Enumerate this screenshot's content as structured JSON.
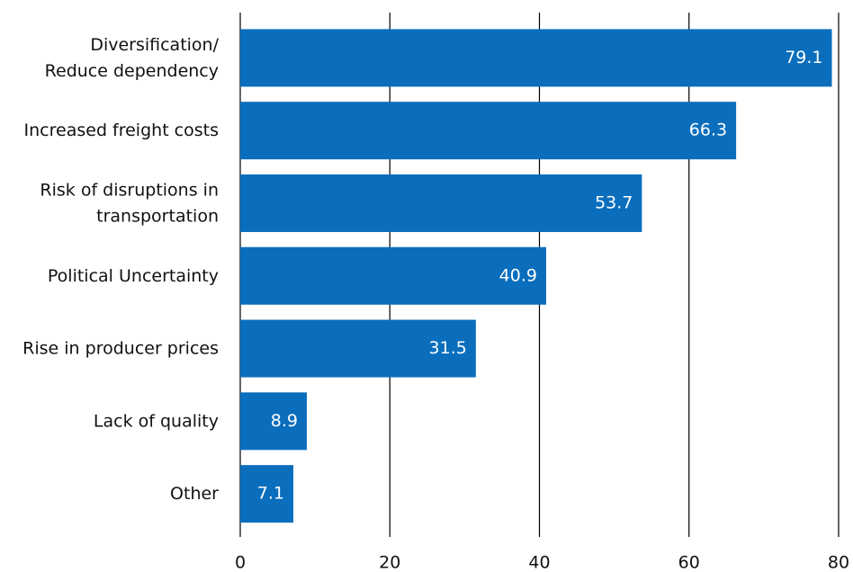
{
  "chart_data": {
    "type": "bar",
    "orientation": "horizontal",
    "categories": [
      [
        "Diversification/",
        "Reduce  dependency"
      ],
      [
        "Increased freight costs"
      ],
      [
        "Risk of disruptions in",
        "transportation"
      ],
      [
        "Political Uncertainty"
      ],
      [
        "Rise in producer prices"
      ],
      [
        "Lack of quality"
      ],
      [
        "Other"
      ]
    ],
    "values": [
      79.1,
      66.3,
      53.7,
      40.9,
      31.5,
      8.9,
      7.1
    ],
    "color": "#0a6ebd",
    "xlim": [
      0,
      80
    ],
    "xticks": [
      0,
      20,
      40,
      60,
      80
    ],
    "grid": true
  }
}
